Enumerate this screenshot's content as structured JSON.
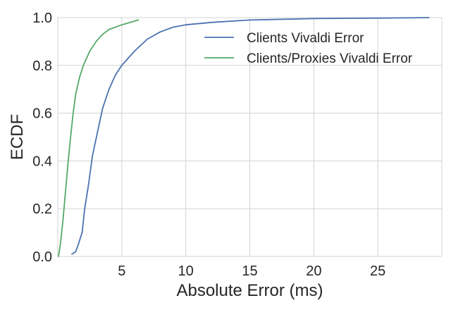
{
  "chart_data": {
    "type": "line",
    "title": "",
    "xlabel": "Absolute Error (ms)",
    "ylabel": "ECDF",
    "xlim": [
      0,
      30
    ],
    "ylim": [
      0,
      1.0
    ],
    "x_ticks": [
      5,
      10,
      15,
      20,
      25
    ],
    "x_tick_labels": [
      "5",
      "10",
      "15",
      "20",
      "25"
    ],
    "y_ticks": [
      0.0,
      0.2,
      0.4,
      0.6,
      0.8,
      1.0
    ],
    "y_tick_labels": [
      "0.0",
      "0.2",
      "0.4",
      "0.6",
      "0.8",
      "1.0"
    ],
    "grid": true,
    "legend_position": "top-right",
    "background": "#ffffff",
    "grid_color": "#d3d3d3",
    "series": [
      {
        "name": "Clients Vivaldi Error",
        "color": "#4c72b0",
        "points": [
          [
            1.1,
            0.01
          ],
          [
            1.4,
            0.02
          ],
          [
            1.6,
            0.05
          ],
          [
            1.9,
            0.1
          ],
          [
            2.1,
            0.2
          ],
          [
            2.4,
            0.3
          ],
          [
            2.7,
            0.42
          ],
          [
            3.1,
            0.52
          ],
          [
            3.5,
            0.62
          ],
          [
            4.0,
            0.7
          ],
          [
            4.5,
            0.76
          ],
          [
            5.0,
            0.8
          ],
          [
            5.5,
            0.83
          ],
          [
            6.0,
            0.86
          ],
          [
            7.0,
            0.91
          ],
          [
            8.0,
            0.94
          ],
          [
            9.0,
            0.96
          ],
          [
            10.0,
            0.97
          ],
          [
            12.0,
            0.98
          ],
          [
            15.0,
            0.99
          ],
          [
            20.0,
            0.996
          ],
          [
            25.0,
            0.998
          ],
          [
            29.0,
            1.0
          ]
        ]
      },
      {
        "name": "Clients/Proxies Vivaldi Error",
        "color": "#55a868",
        "points": [
          [
            0.05,
            0.0
          ],
          [
            0.2,
            0.05
          ],
          [
            0.4,
            0.15
          ],
          [
            0.6,
            0.27
          ],
          [
            0.8,
            0.39
          ],
          [
            1.0,
            0.5
          ],
          [
            1.2,
            0.6
          ],
          [
            1.4,
            0.68
          ],
          [
            1.7,
            0.75
          ],
          [
            2.0,
            0.8
          ],
          [
            2.5,
            0.86
          ],
          [
            3.0,
            0.9
          ],
          [
            3.5,
            0.93
          ],
          [
            4.0,
            0.95
          ],
          [
            5.0,
            0.97
          ],
          [
            6.3,
            0.99
          ]
        ]
      }
    ]
  }
}
